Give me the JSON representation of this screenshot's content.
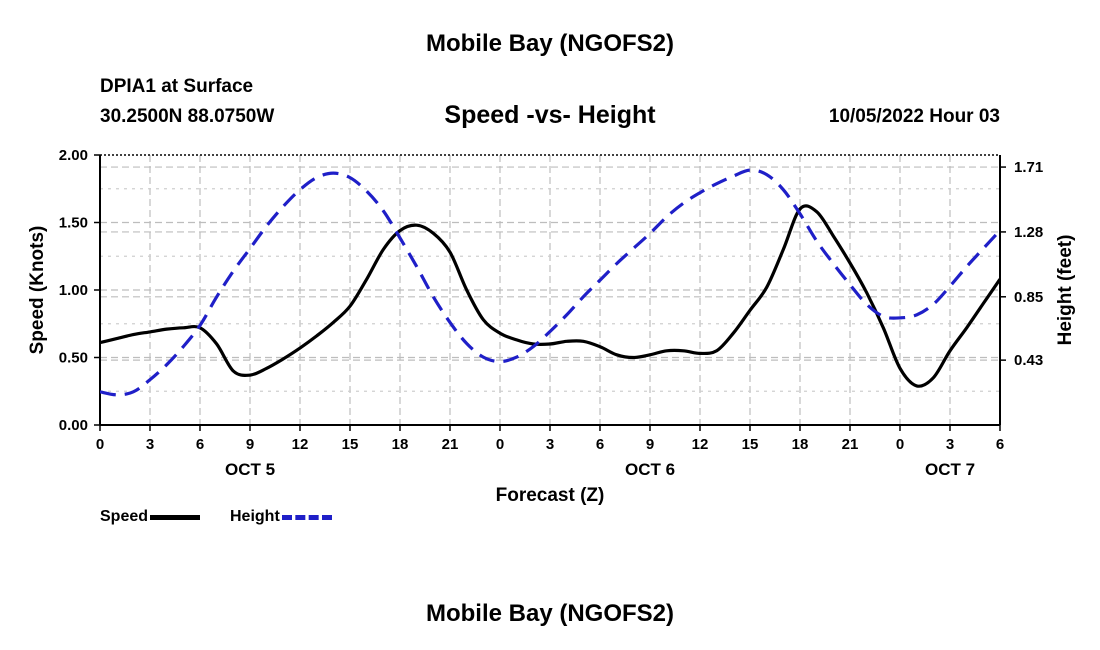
{
  "header": {
    "title": "Mobile Bay (NGOFS2)",
    "station": "DPIA1 at Surface",
    "coords": "30.2500N  88.0750W",
    "subtitle": "Speed -vs- Height",
    "datetime": "10/05/2022 Hour 03"
  },
  "footer": {
    "title": "Mobile Bay (NGOFS2)"
  },
  "legend": {
    "speed_label": "Speed",
    "height_label": "Height"
  },
  "colors": {
    "speed": "#000000",
    "height": "#1f1fc8",
    "grid": "#bdbdbd"
  },
  "chart_data": {
    "type": "line",
    "title": "Speed -vs- Height",
    "xlabel": "Forecast (Z)",
    "ylabel": "Speed (Knots)",
    "y2label": "Height (feet)",
    "x_ticks": [
      "0",
      "3",
      "6",
      "9",
      "12",
      "15",
      "18",
      "21",
      "0",
      "3",
      "6",
      "9",
      "12",
      "15",
      "18",
      "21",
      "0",
      "3",
      "6"
    ],
    "x_dates": [
      {
        "label": "OCT 5",
        "at_tick": 3
      },
      {
        "label": "OCT 6",
        "at_tick": 11
      },
      {
        "label": "OCT 7",
        "at_tick": 17
      }
    ],
    "xlim": [
      0,
      54
    ],
    "ylim": [
      0,
      2
    ],
    "y_ticks": [
      "0.00",
      "0.50",
      "1.00",
      "1.50",
      "2.00"
    ],
    "y2_ticks": [
      "0.43",
      "0.85",
      "1.28",
      "1.71"
    ],
    "y2_tick_values": [
      0.43,
      0.85,
      1.28,
      1.71
    ],
    "y2lim": [
      0.0,
      1.79
    ],
    "grid": true,
    "series": [
      {
        "name": "Speed",
        "axis": "left",
        "style": "solid",
        "x": [
          0,
          1,
          2,
          3,
          4,
          5,
          6,
          7,
          8,
          9,
          10,
          11,
          12,
          13,
          14,
          15,
          16,
          17,
          18,
          19,
          20,
          21,
          22,
          23,
          24,
          25,
          26,
          27,
          28,
          29,
          30,
          31,
          32,
          33,
          34,
          35,
          36,
          37,
          38,
          39,
          40,
          41,
          42,
          43,
          44,
          45,
          46,
          47,
          48,
          49,
          50,
          51,
          52,
          53,
          54
        ],
        "values": [
          0.61,
          0.64,
          0.67,
          0.69,
          0.71,
          0.72,
          0.72,
          0.6,
          0.4,
          0.37,
          0.42,
          0.49,
          0.57,
          0.66,
          0.76,
          0.88,
          1.08,
          1.3,
          1.44,
          1.48,
          1.42,
          1.28,
          1.0,
          0.78,
          0.68,
          0.63,
          0.6,
          0.6,
          0.62,
          0.62,
          0.58,
          0.52,
          0.5,
          0.52,
          0.55,
          0.55,
          0.53,
          0.55,
          0.68,
          0.85,
          1.02,
          1.3,
          1.6,
          1.58,
          1.4,
          1.2,
          0.98,
          0.72,
          0.42,
          0.29,
          0.35,
          0.55,
          0.72,
          0.9,
          1.08
        ]
      },
      {
        "name": "Height",
        "axis": "right",
        "style": "dashed",
        "x": [
          0,
          1,
          2,
          3,
          4,
          5,
          6,
          7,
          8,
          9,
          10,
          11,
          12,
          13,
          14,
          15,
          16,
          17,
          18,
          19,
          20,
          21,
          22,
          23,
          24,
          25,
          26,
          27,
          28,
          29,
          30,
          31,
          32,
          33,
          34,
          35,
          36,
          37,
          38,
          39,
          40,
          41,
          42,
          43,
          44,
          45,
          46,
          47,
          48,
          49,
          50,
          51,
          52,
          53,
          54
        ],
        "values": [
          0.22,
          0.2,
          0.22,
          0.3,
          0.4,
          0.52,
          0.66,
          0.85,
          1.02,
          1.17,
          1.32,
          1.45,
          1.56,
          1.64,
          1.67,
          1.64,
          1.55,
          1.42,
          1.24,
          1.05,
          0.85,
          0.68,
          0.54,
          0.45,
          0.42,
          0.45,
          0.52,
          0.62,
          0.73,
          0.85,
          0.96,
          1.07,
          1.17,
          1.27,
          1.38,
          1.47,
          1.54,
          1.6,
          1.65,
          1.69,
          1.66,
          1.56,
          1.4,
          1.22,
          1.07,
          0.93,
          0.8,
          0.72,
          0.71,
          0.73,
          0.8,
          0.92,
          1.05,
          1.17,
          1.29
        ]
      }
    ]
  }
}
